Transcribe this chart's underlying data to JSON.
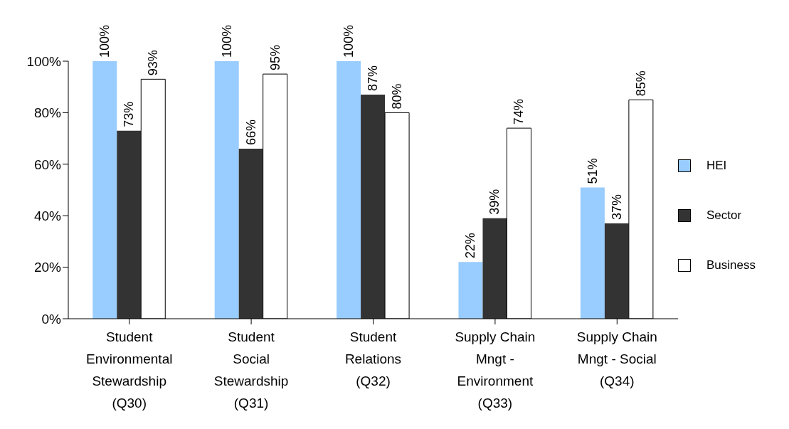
{
  "chart_data": {
    "type": "bar",
    "categories": [
      "Student Environmental Stewardship (Q30)",
      "Student Social Stewardship (Q31)",
      "Student Relations (Q32)",
      "Supply Chain Mngt - Environment (Q33)",
      "Supply Chain Mngt - Social (Q34)"
    ],
    "series": [
      {
        "name": "HEI",
        "color": "#99ccff",
        "values": [
          100,
          100,
          100,
          22,
          51
        ],
        "value_labels": [
          "100%",
          "100%",
          "100%",
          "22%",
          "51%"
        ]
      },
      {
        "name": "Sector",
        "color": "#333333",
        "values": [
          73,
          66,
          87,
          39,
          37
        ],
        "value_labels": [
          "73%",
          "66%",
          "87%",
          "39%",
          "37%"
        ]
      },
      {
        "name": "Business",
        "color": "#ffffff",
        "values": [
          93,
          95,
          80,
          74,
          85
        ],
        "value_labels": [
          "93%",
          "95%",
          "80%",
          "74%",
          "85%"
        ]
      }
    ],
    "ylim": [
      0,
      100
    ],
    "yticks": [
      {
        "value": 0,
        "label": "0%"
      },
      {
        "value": 20,
        "label": "20%"
      },
      {
        "value": 40,
        "label": "40%"
      },
      {
        "value": 60,
        "label": "60%"
      },
      {
        "value": 80,
        "label": "80%"
      },
      {
        "value": 100,
        "label": "100%"
      }
    ],
    "grid": false,
    "legend": "right"
  }
}
